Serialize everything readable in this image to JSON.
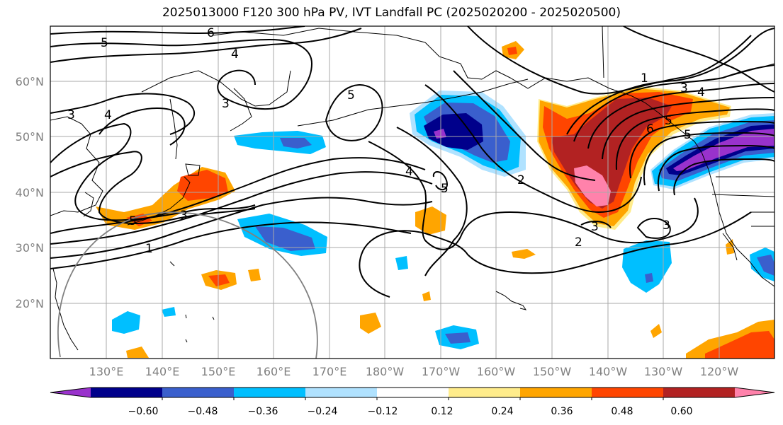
{
  "title": "2025013000 F120 300 hPa PV, IVT Landfall PC (2025020200 - 2025020500)",
  "map": {
    "lat_labels": [
      "60°N",
      "50°N",
      "40°N",
      "30°N",
      "20°N"
    ],
    "lon_labels": [
      "130°E",
      "140°E",
      "150°E",
      "160°E",
      "170°E",
      "180°W",
      "170°W",
      "160°W",
      "150°W",
      "140°W",
      "130°W",
      "120°W"
    ],
    "contour_labels": [
      "6",
      "5",
      "4",
      "3",
      "4",
      "3",
      "1",
      "3",
      "5",
      "4",
      "5",
      "2",
      "3",
      "2",
      "3",
      "1",
      "3",
      "4",
      "6",
      "5",
      "5",
      "5"
    ]
  },
  "colorbar": {
    "colors": [
      "#9932cc",
      "#00008b",
      "#3a5fcd",
      "#00bfff",
      "#b0e2ff",
      "#ffffff",
      "#ffec8b",
      "#ffa500",
      "#ff4500",
      "#b22222",
      "#ff82ab"
    ],
    "tick_labels": [
      "−0.60",
      "−0.48",
      "−0.36",
      "−0.24",
      "−0.12",
      "0.12",
      "0.24",
      "0.36",
      "0.48",
      "0.60"
    ]
  },
  "colors": {
    "coast": "#000000",
    "grid": "#999999",
    "contour": "#000000",
    "circle": "#808080"
  }
}
